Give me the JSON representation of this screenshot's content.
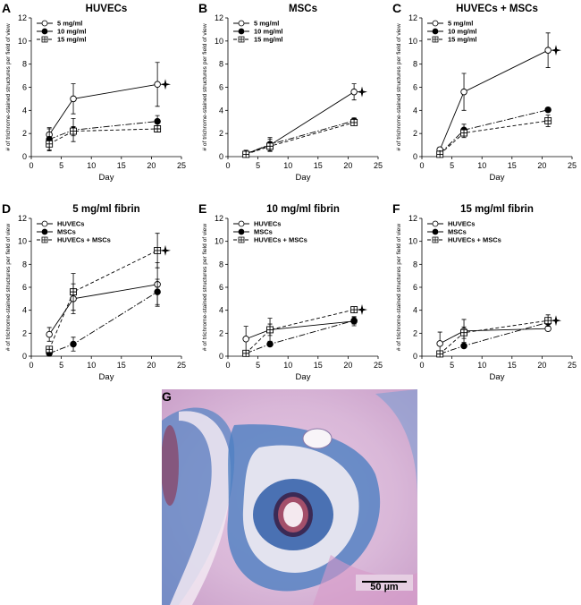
{
  "chart_data": [
    {
      "type": "line",
      "panel": "A",
      "title": "HUVECs",
      "xlabel": "Day",
      "ylabel": "# of trichrome-stained structures per field of view",
      "x": [
        3,
        7,
        21
      ],
      "xlim": [
        0,
        25
      ],
      "xticks": [
        0,
        5,
        10,
        15,
        20,
        25
      ],
      "ylim": [
        0,
        12
      ],
      "yticks": [
        0,
        2,
        4,
        6,
        8,
        10,
        12
      ],
      "series": [
        {
          "name": "5 mg/ml",
          "color": "#000000",
          "marker": "open-circle",
          "line": "solid",
          "values": [
            1.9,
            5.0,
            6.25
          ],
          "errors": [
            0.6,
            1.3,
            1.9
          ]
        },
        {
          "name": "10 mg/ml",
          "color": "#000000",
          "marker": "filled-circle",
          "line": "dashdot",
          "values": [
            1.5,
            2.3,
            3.05
          ],
          "errors": [
            0.9,
            1.0,
            0.5
          ]
        },
        {
          "name": "15 mg/ml",
          "color": "#000000",
          "marker": "crossed-square",
          "line": "dashed",
          "values": [
            1.1,
            2.2,
            2.4
          ],
          "errors": [
            0.6,
            0.4,
            0.2
          ]
        }
      ]
    },
    {
      "type": "line",
      "panel": "B",
      "title": "MSCs",
      "xlabel": "Day",
      "ylabel": "# of trichrome-stained structures per field of view",
      "x": [
        3,
        7,
        21
      ],
      "xlim": [
        0,
        25
      ],
      "xticks": [
        0,
        5,
        10,
        15,
        20,
        25
      ],
      "ylim": [
        0,
        12
      ],
      "yticks": [
        0,
        2,
        4,
        6,
        8,
        10,
        12
      ],
      "series": [
        {
          "name": "5 mg/ml",
          "color": "#000000",
          "marker": "open-circle",
          "line": "solid",
          "values": [
            0.25,
            1.0,
            5.6
          ],
          "errors": [
            0.3,
            0.5,
            0.7
          ]
        },
        {
          "name": "10 mg/ml",
          "color": "#000000",
          "marker": "filled-circle",
          "line": "dashdot",
          "values": [
            0.25,
            1.05,
            3.1
          ],
          "errors": [
            0.2,
            0.6,
            0.25
          ]
        },
        {
          "name": "15 mg/ml",
          "color": "#000000",
          "marker": "crossed-square",
          "line": "dashed",
          "values": [
            0.2,
            0.9,
            2.95
          ],
          "errors": [
            0.2,
            0.4,
            0.2
          ]
        }
      ]
    },
    {
      "type": "line",
      "panel": "C",
      "title": "HUVECs + MSCs",
      "xlabel": "Day",
      "ylabel": "# of trichrome-stained structures per field of view",
      "x": [
        3,
        7,
        21
      ],
      "xlim": [
        0,
        25
      ],
      "xticks": [
        0,
        5,
        10,
        15,
        20,
        25
      ],
      "ylim": [
        0,
        12
      ],
      "yticks": [
        0,
        2,
        4,
        6,
        8,
        10,
        12
      ],
      "series": [
        {
          "name": "5 mg/ml",
          "color": "#000000",
          "marker": "open-circle",
          "line": "solid",
          "values": [
            0.6,
            5.6,
            9.2
          ],
          "errors": [
            0.2,
            1.6,
            1.5
          ]
        },
        {
          "name": "10 mg/ml",
          "color": "#000000",
          "marker": "filled-circle",
          "line": "dashdot",
          "values": [
            0.25,
            2.3,
            4.05
          ],
          "errors": [
            0.15,
            0.5,
            0.15
          ]
        },
        {
          "name": "15 mg/ml",
          "color": "#000000",
          "marker": "crossed-square",
          "line": "dashed",
          "values": [
            0.2,
            2.05,
            3.1
          ],
          "errors": [
            0.15,
            0.4,
            0.5
          ]
        }
      ]
    },
    {
      "type": "line",
      "panel": "D",
      "title": "5 mg/ml fibrin",
      "xlabel": "Day",
      "ylabel": "# of trichrome-stained structures per field of view",
      "x": [
        3,
        7,
        21
      ],
      "xlim": [
        0,
        25
      ],
      "xticks": [
        0,
        5,
        10,
        15,
        20,
        25
      ],
      "ylim": [
        0,
        12
      ],
      "yticks": [
        0,
        2,
        4,
        6,
        8,
        10,
        12
      ],
      "series": [
        {
          "name": "HUVECs",
          "color": "#000000",
          "marker": "open-circle",
          "line": "solid",
          "values": [
            1.9,
            5.0,
            6.25
          ],
          "errors": [
            0.6,
            1.3,
            1.9
          ]
        },
        {
          "name": "MSCs",
          "color": "#000000",
          "marker": "filled-circle",
          "line": "dashdot",
          "values": [
            0.25,
            1.05,
            5.6
          ],
          "errors": [
            0.15,
            0.6,
            1.1
          ]
        },
        {
          "name": "HUVECs + MSCs",
          "color": "#000000",
          "marker": "crossed-square",
          "line": "dashed",
          "values": [
            0.6,
            5.6,
            9.2
          ],
          "errors": [
            0.2,
            1.6,
            1.5
          ]
        }
      ]
    },
    {
      "type": "line",
      "panel": "E",
      "title": "10 mg/ml fibrin",
      "xlabel": "Day",
      "ylabel": "# of trichrome-stained structures per field of view",
      "x": [
        3,
        7,
        21
      ],
      "xlim": [
        0,
        25
      ],
      "xticks": [
        0,
        5,
        10,
        15,
        20,
        25
      ],
      "ylim": [
        0,
        12
      ],
      "yticks": [
        0,
        2,
        4,
        6,
        8,
        10,
        12
      ],
      "series": [
        {
          "name": "HUVECs",
          "color": "#000000",
          "marker": "open-circle",
          "line": "solid",
          "values": [
            1.5,
            2.3,
            3.05
          ],
          "errors": [
            1.1,
            1.0,
            0.4
          ]
        },
        {
          "name": "MSCs",
          "color": "#000000",
          "marker": "filled-circle",
          "line": "dashdot",
          "values": [
            0.25,
            1.05,
            3.1
          ],
          "errors": [
            0.15,
            0.15,
            0.3
          ]
        },
        {
          "name": "HUVECs + MSCs",
          "color": "#000000",
          "marker": "crossed-square",
          "line": "dashed",
          "values": [
            0.25,
            2.3,
            4.05
          ],
          "errors": [
            0.2,
            0.5,
            0.15
          ]
        }
      ]
    },
    {
      "type": "line",
      "panel": "F",
      "title": "15 mg/ml fibrin",
      "xlabel": "Day",
      "ylabel": "# of trichrome-stained structures per field of view",
      "x": [
        3,
        7,
        21
      ],
      "xlim": [
        0,
        25
      ],
      "xticks": [
        0,
        5,
        10,
        15,
        20,
        25
      ],
      "ylim": [
        0,
        12
      ],
      "yticks": [
        0,
        2,
        4,
        6,
        8,
        10,
        12
      ],
      "series": [
        {
          "name": "HUVECs",
          "color": "#000000",
          "marker": "open-circle",
          "line": "solid",
          "values": [
            1.1,
            2.2,
            2.4
          ],
          "errors": [
            1.0,
            1.0,
            0.2
          ]
        },
        {
          "name": "MSCs",
          "color": "#000000",
          "marker": "filled-circle",
          "line": "dashdot",
          "values": [
            0.2,
            0.9,
            2.95
          ],
          "errors": [
            0.15,
            0.15,
            0.2
          ]
        },
        {
          "name": "HUVECs + MSCs",
          "color": "#000000",
          "marker": "crossed-square",
          "line": "dashed",
          "values": [
            0.2,
            2.05,
            3.1
          ],
          "errors": [
            0.15,
            0.5,
            0.5
          ]
        }
      ]
    }
  ],
  "image_panel": {
    "panel": "G",
    "scale_bar": "50 µm"
  }
}
